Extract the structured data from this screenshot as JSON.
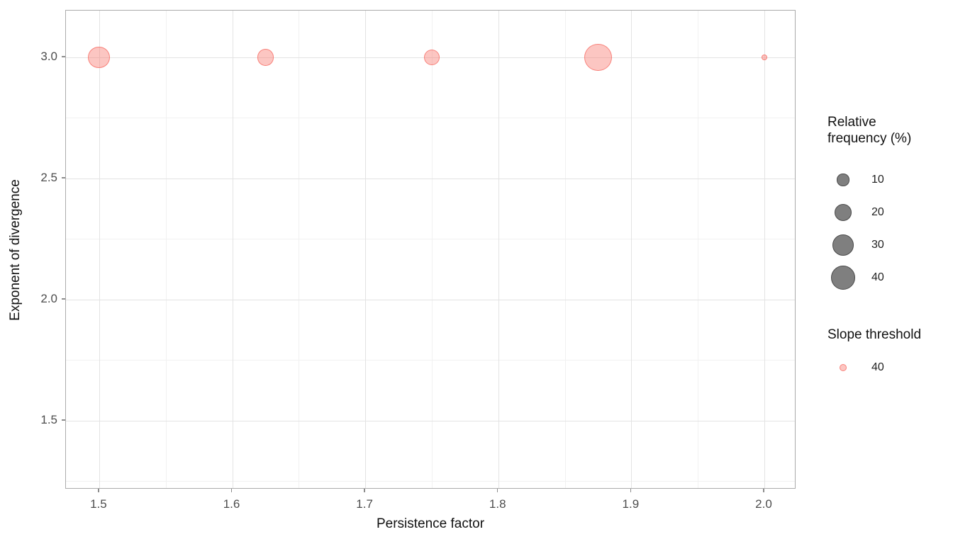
{
  "chart_data": {
    "type": "scatter",
    "subtype": "bubble",
    "xlabel": "Persistence factor",
    "ylabel": "Exponent of divergence",
    "xlim": [
      1.475,
      2.024
    ],
    "ylim": [
      1.216,
      3.193
    ],
    "x_ticks": [
      1.5,
      1.6,
      1.7,
      1.8,
      1.9,
      2.0
    ],
    "x_tick_labels": [
      "1.5",
      "1.6",
      "1.7",
      "1.8",
      "1.9",
      "2.0"
    ],
    "x_minor_ticks": [
      1.55,
      1.65,
      1.75,
      1.85,
      1.95
    ],
    "y_ticks": [
      3.0,
      2.5,
      2.0,
      1.5
    ],
    "y_tick_labels": [
      "3.0",
      "2.5",
      "2.0",
      "1.5"
    ],
    "y_minor_ticks": [
      2.75,
      2.25,
      1.75,
      1.25
    ],
    "grid": true,
    "legend_position": "right",
    "points": [
      {
        "x": 1.5,
        "y": 3.0,
        "relative_frequency": 32,
        "slope_threshold": 40
      },
      {
        "x": 1.625,
        "y": 3.0,
        "relative_frequency": 19,
        "slope_threshold": 40
      },
      {
        "x": 1.75,
        "y": 3.0,
        "relative_frequency": 17,
        "slope_threshold": 40
      },
      {
        "x": 1.875,
        "y": 3.0,
        "relative_frequency": 50,
        "slope_threshold": 40
      },
      {
        "x": 2.0,
        "y": 3.0,
        "relative_frequency": 2,
        "slope_threshold": 40
      }
    ],
    "size_legend": {
      "title": "Relative frequency (%)",
      "title_lines": [
        "Relative",
        "frequency (%)"
      ],
      "breaks": [
        10,
        20,
        30,
        40
      ],
      "labels": [
        "10",
        "20",
        "30",
        "40"
      ]
    },
    "color_legend": {
      "title": "Slope threshold",
      "breaks": [
        40
      ],
      "labels": [
        "40"
      ]
    }
  },
  "style": {
    "background": "#FFFFFF",
    "panel_border": "#ABABAB",
    "grid_major": "#E3E3E3",
    "grid_minor": "#F1F1F1",
    "tick_mark": "#8C8C8C",
    "tick_label": "#4D4D4D",
    "axis_title": "#111111",
    "legend_label": "#1F1F1F",
    "point_color": "#F8766D",
    "point_fill": "rgba(248,118,109,0.42)",
    "point_stroke": "rgba(248,118,109,0.85)",
    "size_key_fill": "#7F7F7F",
    "size_key_stroke": "#4A4A4A"
  }
}
